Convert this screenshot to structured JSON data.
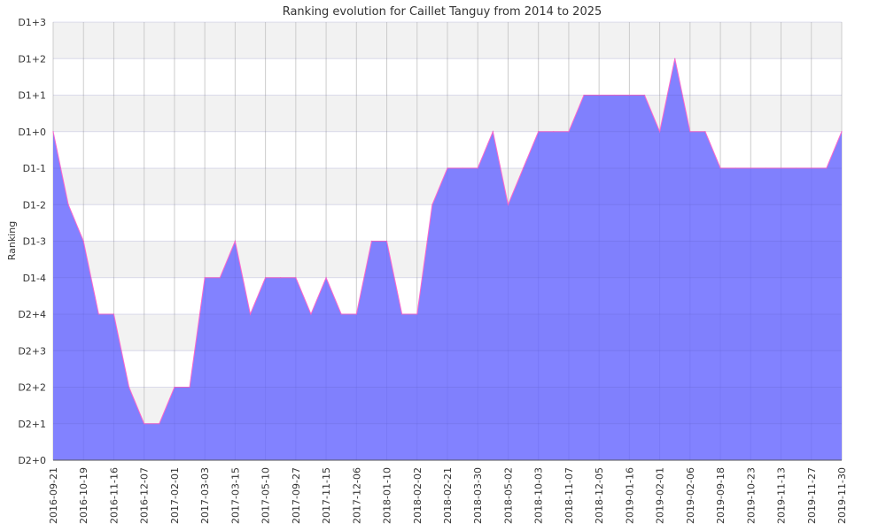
{
  "chart_data": {
    "type": "area",
    "title": "Ranking evolution for Caillet Tanguy from 2014 to 2025",
    "ylabel": "Ranking",
    "xlabel": "",
    "y_tick_labels": [
      "D2+0",
      "D2+1",
      "D2+2",
      "D2+3",
      "D2+4",
      "D1-4",
      "D1-3",
      "D1-2",
      "D1-1",
      "D1+0",
      "D1+1",
      "D1+2",
      "D1+3"
    ],
    "x_tick_labels": [
      "2016-09-21",
      "2016-10-19",
      "2016-11-16",
      "2016-12-07",
      "2017-02-01",
      "2017-03-03",
      "2017-03-15",
      "2017-05-10",
      "2017-09-27",
      "2017-11-15",
      "2017-12-06",
      "2018-01-10",
      "2018-02-02",
      "2018-02-21",
      "2018-03-30",
      "2018-05-02",
      "2018-10-03",
      "2018-11-07",
      "2018-12-05",
      "2019-01-16",
      "2019-02-01",
      "2019-02-06",
      "2019-09-18",
      "2019-10-23",
      "2019-11-13",
      "2019-11-27",
      "2019-11-30"
    ],
    "ylim": [
      0,
      12
    ],
    "series": [
      {
        "values": [
          9,
          7,
          6,
          4,
          4,
          2,
          1,
          1,
          2,
          2,
          5,
          5,
          6,
          4,
          5,
          5,
          5,
          4,
          5,
          4,
          4,
          6,
          6,
          4,
          4,
          7,
          8,
          8,
          8,
          9,
          7,
          8,
          9,
          9,
          9,
          10,
          10,
          10,
          10,
          10,
          9,
          11,
          9,
          9,
          8,
          8,
          8,
          8,
          8,
          8,
          8,
          8,
          9
        ]
      }
    ],
    "colors": {
      "fill": "#6666ff",
      "line": "#ff66cc"
    },
    "grid": true,
    "legend": "none"
  }
}
